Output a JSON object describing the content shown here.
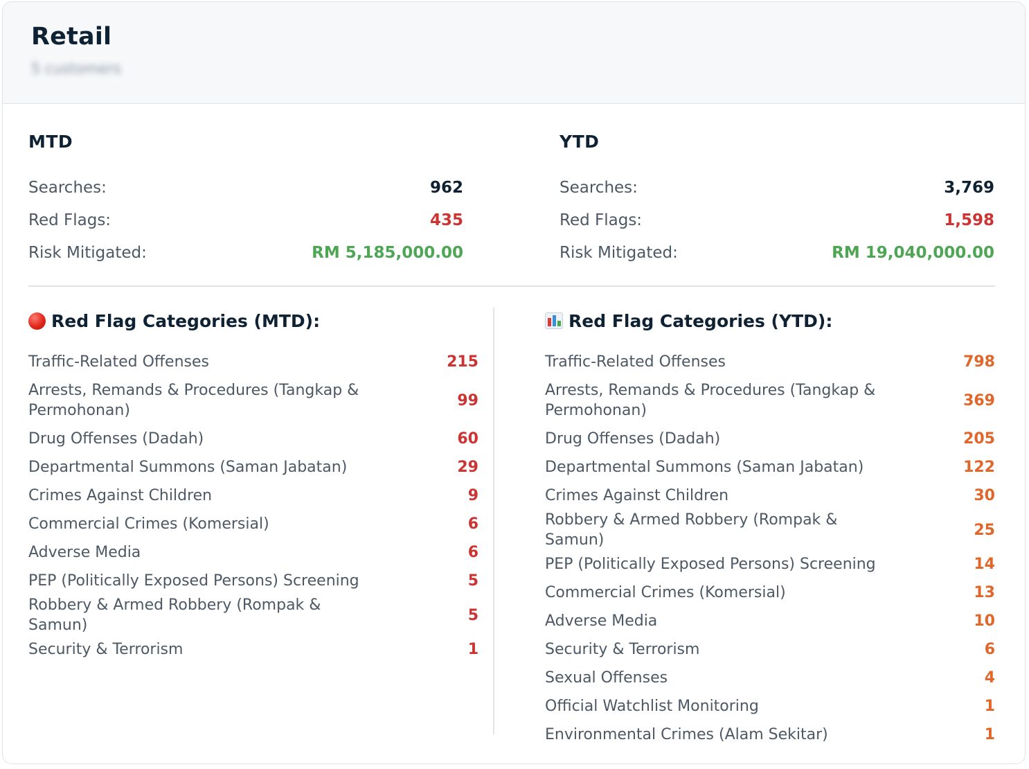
{
  "header": {
    "title": "Retail",
    "subtitle": "5 customers"
  },
  "mtd": {
    "title": "MTD",
    "searches_label": "Searches:",
    "searches": "962",
    "red_flags_label": "Red Flags:",
    "red_flags": "435",
    "risk_label": "Risk Mitigated:",
    "risk": "RM 5,185,000.00"
  },
  "ytd": {
    "title": "YTD",
    "searches_label": "Searches:",
    "searches": "3,769",
    "red_flags_label": "Red Flags:",
    "red_flags": "1,598",
    "risk_label": "Risk Mitigated:",
    "risk": "RM 19,040,000.00"
  },
  "categories_mtd": {
    "title": "Red Flag Categories (MTD):",
    "icon": "red-circle-icon",
    "items": [
      {
        "label": "Traffic-Related Offenses",
        "value": "215"
      },
      {
        "label": "Arrests, Remands & Procedures (Tangkap & Permohonan)",
        "value": "99"
      },
      {
        "label": "Drug Offenses (Dadah)",
        "value": "60"
      },
      {
        "label": "Departmental Summons (Saman Jabatan)",
        "value": "29"
      },
      {
        "label": "Crimes Against Children",
        "value": "9"
      },
      {
        "label": "Commercial Crimes (Komersial)",
        "value": "6"
      },
      {
        "label": "Adverse Media",
        "value": "6"
      },
      {
        "label": "PEP (Politically Exposed Persons) Screening",
        "value": "5"
      },
      {
        "label": "Robbery & Armed Robbery (Rompak & Samun)",
        "value": "5"
      },
      {
        "label": "Security & Terrorism",
        "value": "1"
      }
    ]
  },
  "categories_ytd": {
    "title": "Red Flag Categories (YTD):",
    "icon": "bar-chart-icon",
    "items": [
      {
        "label": "Traffic-Related Offenses",
        "value": "798"
      },
      {
        "label": "Arrests, Remands & Procedures (Tangkap & Permohonan)",
        "value": "369"
      },
      {
        "label": "Drug Offenses (Dadah)",
        "value": "205"
      },
      {
        "label": "Departmental Summons (Saman Jabatan)",
        "value": "122"
      },
      {
        "label": "Crimes Against Children",
        "value": "30"
      },
      {
        "label": "Robbery & Armed Robbery (Rompak & Samun)",
        "value": "25"
      },
      {
        "label": "PEP (Politically Exposed Persons) Screening",
        "value": "14"
      },
      {
        "label": "Commercial Crimes (Komersial)",
        "value": "13"
      },
      {
        "label": "Adverse Media",
        "value": "10"
      },
      {
        "label": "Security & Terrorism",
        "value": "6"
      },
      {
        "label": "Sexual Offenses",
        "value": "4"
      },
      {
        "label": "Official Watchlist Monitoring",
        "value": "1"
      },
      {
        "label": "Environmental Crimes (Alam Sekitar)",
        "value": "1"
      }
    ]
  },
  "colors": {
    "dark": "#0f2233",
    "red": "#cc3333",
    "orange": "#e0662a",
    "green": "#4ea654"
  }
}
